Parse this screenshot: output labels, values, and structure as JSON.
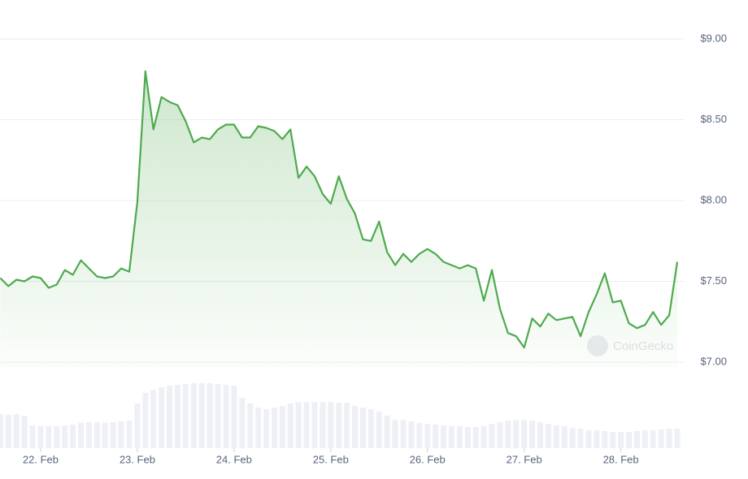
{
  "chart_data": {
    "type": "line",
    "categories": [
      null,
      null,
      null,
      null,
      null,
      "22. Feb",
      null,
      null,
      null,
      null,
      null,
      null,
      null,
      null,
      null,
      null,
      null,
      "23. Feb",
      null,
      null,
      null,
      null,
      null,
      null,
      null,
      null,
      null,
      null,
      null,
      "24. Feb",
      null,
      null,
      null,
      null,
      null,
      null,
      null,
      null,
      null,
      null,
      null,
      "25. Feb",
      null,
      null,
      null,
      null,
      null,
      null,
      null,
      null,
      null,
      null,
      null,
      "26. Feb",
      null,
      null,
      null,
      null,
      null,
      null,
      null,
      null,
      null,
      null,
      null,
      "27. Feb",
      null,
      null,
      null,
      null,
      null,
      null,
      null,
      null,
      null,
      null,
      null,
      "28. Feb",
      null,
      null,
      null,
      null,
      null,
      null,
      null
    ],
    "series": [
      {
        "name": "Price",
        "color": "#4eaa4e",
        "values": [
          7.52,
          7.47,
          7.51,
          7.5,
          7.53,
          7.52,
          7.46,
          7.48,
          7.57,
          7.54,
          7.63,
          7.58,
          7.53,
          7.52,
          7.53,
          7.58,
          7.56,
          7.99,
          8.8,
          8.44,
          8.64,
          8.61,
          8.59,
          8.49,
          8.36,
          8.39,
          8.38,
          8.44,
          8.47,
          8.47,
          8.39,
          8.39,
          8.46,
          8.45,
          8.43,
          8.38,
          8.44,
          8.14,
          8.21,
          8.15,
          8.04,
          7.98,
          8.15,
          8.01,
          7.92,
          7.76,
          7.75,
          7.87,
          7.68,
          7.6,
          7.67,
          7.62,
          7.67,
          7.7,
          7.67,
          7.62,
          7.6,
          7.58,
          7.6,
          7.58,
          7.38,
          7.57,
          7.33,
          7.18,
          7.16,
          7.09,
          7.27,
          7.22,
          7.3,
          7.26,
          7.27,
          7.28,
          7.16,
          7.31,
          7.42,
          7.55,
          7.37,
          7.38,
          7.24,
          7.21,
          7.23,
          7.31,
          7.23,
          7.29,
          7.62
        ]
      },
      {
        "name": "Volume",
        "color": "#eef0f6",
        "values": [
          42,
          41,
          42,
          40,
          28,
          27,
          27,
          27,
          28,
          29,
          31,
          32,
          32,
          31,
          32,
          33,
          34,
          55,
          68,
          72,
          75,
          77,
          78,
          79,
          80,
          80,
          80,
          79,
          78,
          77,
          62,
          55,
          50,
          48,
          50,
          52,
          55,
          57,
          57,
          57,
          57,
          57,
          56,
          56,
          52,
          50,
          48,
          45,
          40,
          35,
          35,
          33,
          31,
          30,
          29,
          28,
          27,
          27,
          26,
          26,
          27,
          30,
          32,
          34,
          35,
          35,
          34,
          32,
          30,
          28,
          27,
          25,
          24,
          22,
          22,
          21,
          20,
          20,
          20,
          21,
          22,
          22,
          23,
          24,
          24
        ]
      }
    ],
    "ylim": [
      7,
      9
    ],
    "yticks": [
      {
        "value": 7,
        "label": "$7.00"
      },
      {
        "value": 7.5,
        "label": "$7.50"
      },
      {
        "value": 8,
        "label": "$8.00"
      },
      {
        "value": 8.5,
        "label": "$8.50"
      },
      {
        "value": 9,
        "label": "$9.00"
      }
    ],
    "grid": true,
    "watermark": "CoinGecko"
  }
}
